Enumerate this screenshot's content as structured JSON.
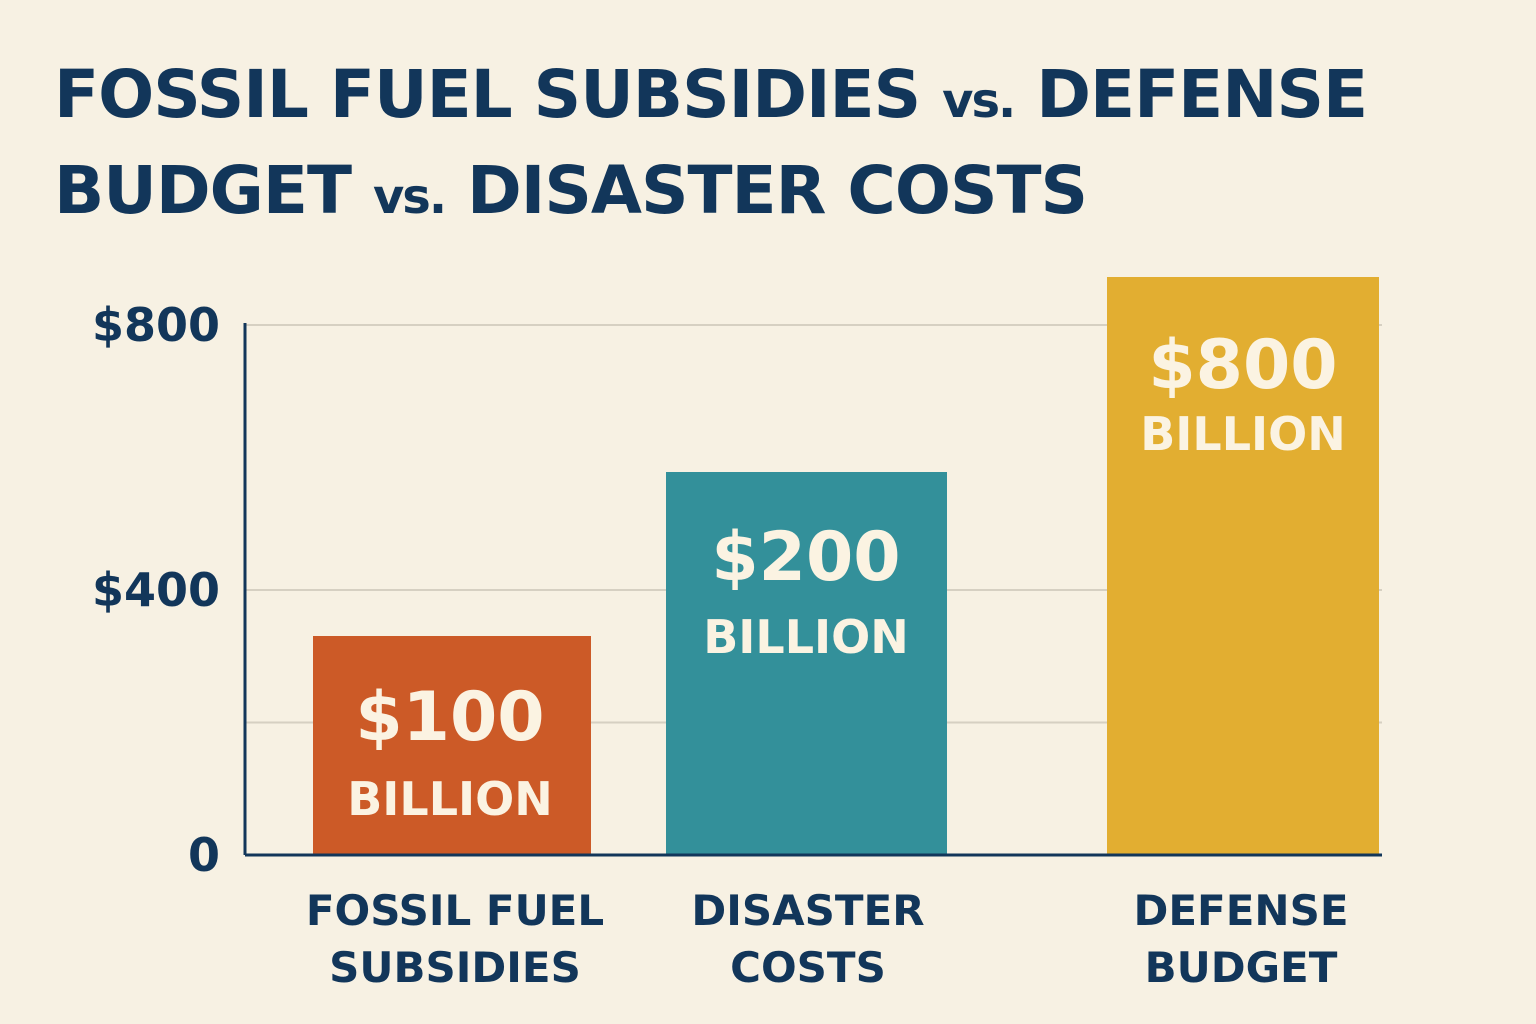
{
  "title": {
    "line1_a": "FOSSIL FUEL SUBSIDIES ",
    "vs": "vs.",
    "line1_b": " DEFENSE",
    "line2_a": "BUDGET ",
    "line2_b": " DISASTER COSTS"
  },
  "colors": {
    "text": "#12365a",
    "background": "#f7f1e3",
    "bar_fossil": "#cc5a27",
    "bar_disaster": "#33909a",
    "bar_defense": "#e2ae31",
    "label_on_bar": "#fbf3e2",
    "grid": "#d6d0c2"
  },
  "chart_data": {
    "type": "bar",
    "title": "FOSSIL FUEL SUBSIDIES vs. DEFENSE BUDGET vs. DISASTER COSTS",
    "xlabel": "",
    "ylabel": "",
    "ylim": [
      0,
      800
    ],
    "y_ticks": [
      "$800",
      "$400",
      "0"
    ],
    "grid": true,
    "categories": [
      [
        "FOSSIL FUEL",
        "SUBSIDIES"
      ],
      [
        "DISASTER",
        "COSTS"
      ],
      [
        "DEFENSE",
        "BUDGET"
      ]
    ],
    "values": [
      100,
      200,
      800
    ],
    "data_labels": [
      {
        "value": "$100",
        "unit": "BILLION"
      },
      {
        "value": "$200",
        "unit": "BILLION"
      },
      {
        "value": "$800",
        "unit": "BILLION"
      }
    ]
  }
}
